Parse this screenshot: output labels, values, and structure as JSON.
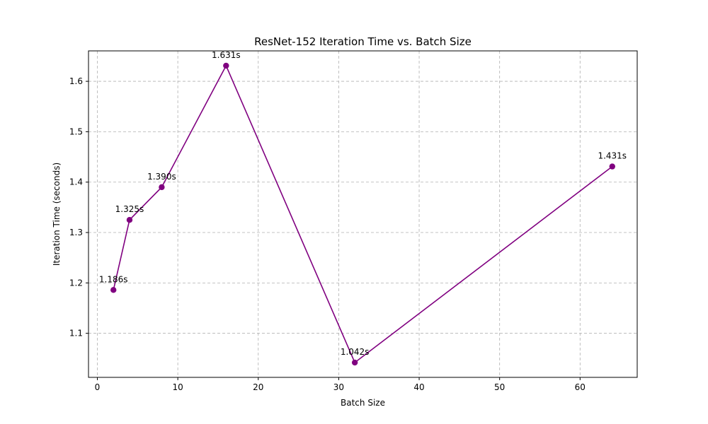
{
  "chart_data": {
    "type": "line",
    "title": "ResNet-152 Iteration Time vs. Batch Size",
    "xlabel": "Batch Size",
    "ylabel": "Iteration Time (seconds)",
    "x": [
      2,
      4,
      8,
      16,
      32,
      64
    ],
    "series": [
      {
        "values": [
          1.186,
          1.325,
          1.39,
          1.631,
          1.042,
          1.431
        ]
      }
    ],
    "data_labels": [
      "1.186s",
      "1.325s",
      "1.390s",
      "1.631s",
      "1.042s",
      "1.431s"
    ],
    "xlim": [
      -1.1,
      67.1
    ],
    "ylim": [
      1.0126,
      1.6604
    ],
    "xticks": [
      0,
      10,
      20,
      30,
      40,
      50,
      60
    ],
    "xtick_labels": [
      "0",
      "10",
      "20",
      "30",
      "40",
      "50",
      "60"
    ],
    "yticks": [
      1.1,
      1.2,
      1.3,
      1.4,
      1.5,
      1.6
    ],
    "ytick_labels": [
      "1.1",
      "1.2",
      "1.3",
      "1.4",
      "1.5",
      "1.6"
    ],
    "grid": true,
    "line_color": "#800080",
    "marker": "circle"
  }
}
